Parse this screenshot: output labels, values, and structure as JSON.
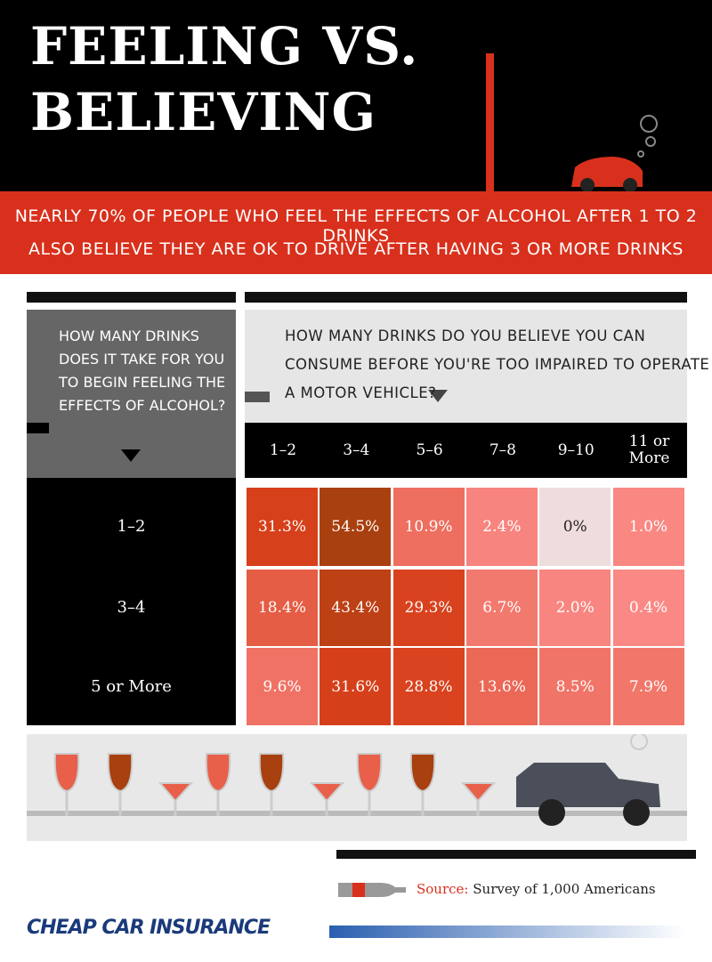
{
  "header": {
    "title_lines": [
      "FEELING VS.",
      "BELIEVING"
    ],
    "subtitle_lines": [
      "NEARLY 70% OF PEOPLE WHO FEEL THE EFFECTS OF ALCOHOL AFTER 1 TO 2 DRINKS",
      "ALSO BELIEVE THEY ARE OK TO DRIVE AFTER HAVING 3 OR MORE DRINKS"
    ]
  },
  "row_header_lines": [
    "HOW MANY DRINKS",
    "DOES IT TAKE FOR YOU",
    "TO BEGIN FEELING THE",
    "EFFECTS OF ALCOHOL?"
  ],
  "column_header_lines": [
    "HOW MANY DRINKS DO YOU BELIEVE YOU CAN",
    "CONSUME BEFORE YOU'RE TOO IMPAIRED TO OPERATE",
    "A MOTOR VEHICLE?"
  ],
  "table": {
    "columns": [
      "1–2",
      "3–4",
      "5–6",
      "7–8",
      "9–10",
      "11 or More"
    ],
    "rows": [
      {
        "label": "1–2",
        "cells": [
          "31.3%",
          "54.5%",
          "10.9%",
          "2.4%",
          "0%",
          "1.0%"
        ]
      },
      {
        "label": "3–4",
        "cells": [
          "18.4%",
          "43.4%",
          "29.3%",
          "6.7%",
          "2.0%",
          "0.4%"
        ]
      },
      {
        "label": "5 or More",
        "cells": [
          "9.6%",
          "31.6%",
          "28.8%",
          "13.6%",
          "8.5%",
          "7.9%"
        ]
      }
    ]
  },
  "source": {
    "label": "Source:",
    "text": "Survey of 1,000 Americans"
  },
  "brand": "CHEAP CAR INSURANCE"
}
